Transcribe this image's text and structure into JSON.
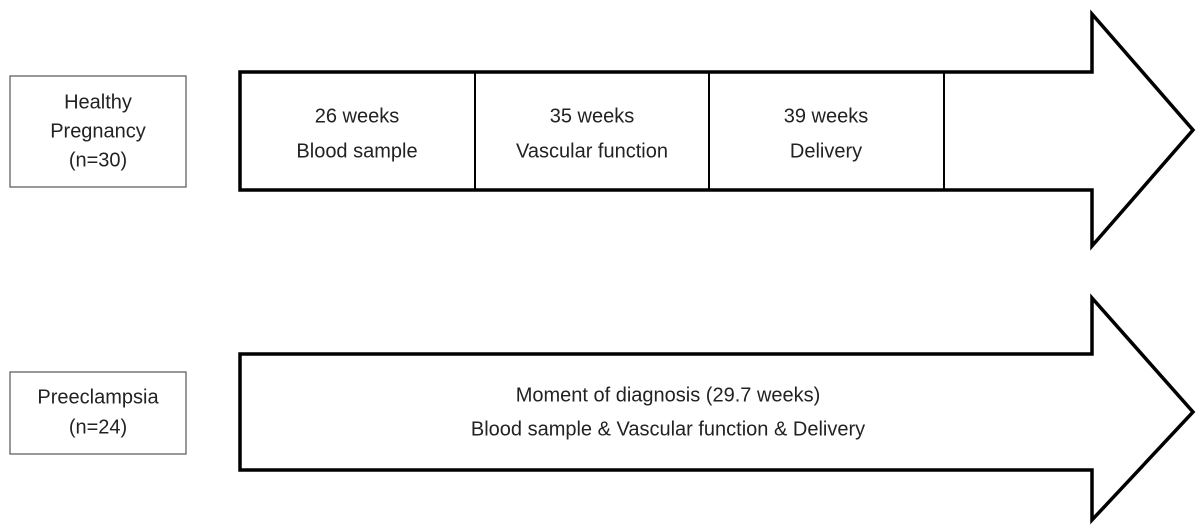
{
  "groups": [
    {
      "label": [
        "Healthy",
        "Pregnancy",
        "(n=30)"
      ],
      "segments": [
        [
          "26 weeks",
          "Blood sample"
        ],
        [
          "35 weeks",
          "Vascular function"
        ],
        [
          "39 weeks",
          "Delivery"
        ]
      ]
    },
    {
      "label": [
        "Preeclampsia",
        "(n=24)"
      ],
      "segments": [
        [
          "Moment of diagnosis (29.7 weeks)",
          "Blood sample & Vascular function & Delivery"
        ]
      ]
    }
  ]
}
